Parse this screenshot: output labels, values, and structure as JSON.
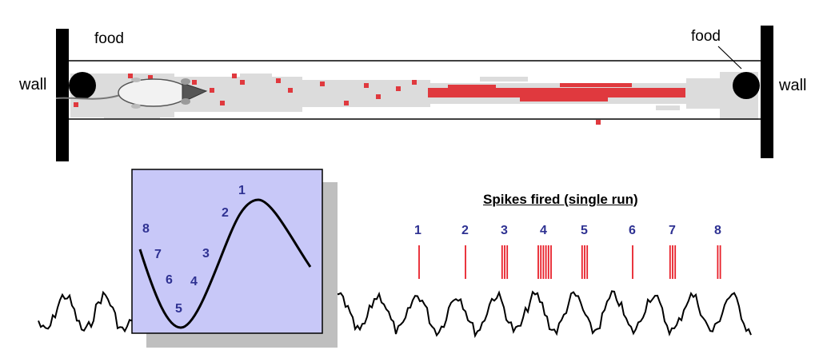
{
  "labels": {
    "wall_left": "wall",
    "wall_right": "wall",
    "food_left": "food",
    "food_right": "food"
  },
  "inset": {
    "phase_numbers": [
      "1",
      "2",
      "3",
      "4",
      "5",
      "6",
      "7",
      "8"
    ],
    "fill_color": "#c8c8f8",
    "shadow_color": "#bfbfbf"
  },
  "spikes": {
    "title": "Spikes fired (single run)",
    "cycle_numbers": [
      "1",
      "2",
      "3",
      "4",
      "5",
      "6",
      "7",
      "8"
    ],
    "spikes_per_cycle": [
      1,
      1,
      3,
      6,
      3,
      1,
      3,
      2
    ],
    "spike_color": "#e8202a",
    "number_color": "#2e3192"
  },
  "track": {
    "occupancy_color": "#dcdcdc",
    "firing_color": "#e0393e",
    "wall_color": "#000000"
  }
}
